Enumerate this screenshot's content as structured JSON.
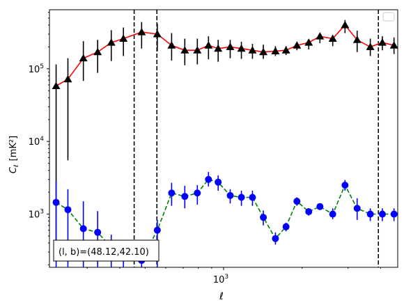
{
  "chart_data": {
    "type": "line",
    "xlabel": "ℓ",
    "ylabel_main": "C",
    "ylabel_sub": "ℓ",
    "ylabel_unit": "[mK²]",
    "xscale": "log",
    "yscale": "log",
    "xlim": [
      215,
      4650
    ],
    "ylim": [
      185,
      650000
    ],
    "x_ticks": [
      {
        "value": 1000,
        "label_base": "10",
        "label_exp": "3"
      }
    ],
    "y_ticks": [
      {
        "value": 1000,
        "label_base": "10",
        "label_exp": "3"
      },
      {
        "value": 10000,
        "label_base": "10",
        "label_exp": "4"
      },
      {
        "value": 100000,
        "label_base": "10",
        "label_exp": "5"
      }
    ],
    "legend": {
      "placement": "top-right",
      "entries": []
    },
    "vlines": [
      {
        "x": 454,
        "color": "#000000",
        "style": "dashed"
      },
      {
        "x": 555,
        "color": "#000000",
        "style": "dashed"
      },
      {
        "x": 3920,
        "color": "#000000",
        "style": "dashed"
      }
    ],
    "annotation": {
      "text": "(l, b)=(48.12,42.10)",
      "placement": "bottom-left"
    },
    "series": [
      {
        "color": "#ff0000",
        "marker": "triangle",
        "marker_color": "#000000",
        "line_style": "solid",
        "x": [
          228,
          253,
          290,
          329,
          371,
          413,
          485,
          557,
          632,
          710,
          793,
          875,
          953,
          1060,
          1170,
          1290,
          1420,
          1580,
          1735,
          1910,
          2120,
          2340,
          2620,
          2920,
          3250,
          3650,
          4060,
          4500
        ],
        "y": [
          58000,
          72000,
          140000,
          170000,
          230000,
          260000,
          320000,
          300000,
          210000,
          180000,
          180000,
          210000,
          190000,
          200000,
          190000,
          180000,
          170000,
          175000,
          180000,
          210000,
          230000,
          280000,
          260000,
          400000,
          250000,
          200000,
          230000,
          210000
        ],
        "yerr_low": [
          250,
          5500,
          68000,
          88000,
          128000,
          150000,
          190000,
          175000,
          130000,
          112000,
          115000,
          135000,
          125000,
          140000,
          137000,
          137000,
          137000,
          150000,
          155000,
          180000,
          185000,
          225000,
          205000,
          310000,
          170000,
          150000,
          180000,
          160000
        ],
        "yerr_high": [
          115000,
          140000,
          240000,
          250000,
          340000,
          370000,
          440000,
          420000,
          310000,
          260000,
          260000,
          280000,
          250000,
          250000,
          235000,
          220000,
          215000,
          205000,
          205000,
          235000,
          255000,
          300000,
          290000,
          470000,
          335000,
          260000,
          280000,
          270000
        ]
      },
      {
        "color": "#008000",
        "marker": "circle",
        "marker_color": "#0000ff",
        "line_style": "dashed",
        "x": [
          228,
          253,
          290,
          329,
          371,
          413,
          485,
          557,
          632,
          710,
          793,
          875,
          953,
          1060,
          1170,
          1290,
          1420,
          1580,
          1735,
          1910,
          2120,
          2340,
          2620,
          2920,
          3250,
          3650,
          4060,
          4500
        ],
        "y": [
          1450,
          1150,
          630,
          560,
          350,
          260,
          230,
          600,
          1950,
          1750,
          1950,
          3000,
          2750,
          1800,
          1700,
          1700,
          900,
          460,
          670,
          1500,
          1080,
          1270,
          1000,
          2500,
          1200,
          1000,
          1000,
          1000
        ],
        "yerr_low": [
          185,
          185,
          185,
          185,
          185,
          185,
          185,
          185,
          1300,
          1200,
          1350,
          2400,
          2100,
          1400,
          1300,
          1300,
          700,
          380,
          580,
          1300,
          950,
          1150,
          850,
          2100,
          830,
          800,
          800,
          800
        ],
        "yerr_high": [
          2900,
          2200,
          1500,
          1100,
          520,
          380,
          330,
          830,
          2700,
          2450,
          2500,
          3800,
          3400,
          2200,
          2100,
          2100,
          1120,
          560,
          760,
          1700,
          1200,
          1400,
          1200,
          2950,
          1650,
          1200,
          1200,
          1200
        ]
      }
    ]
  }
}
